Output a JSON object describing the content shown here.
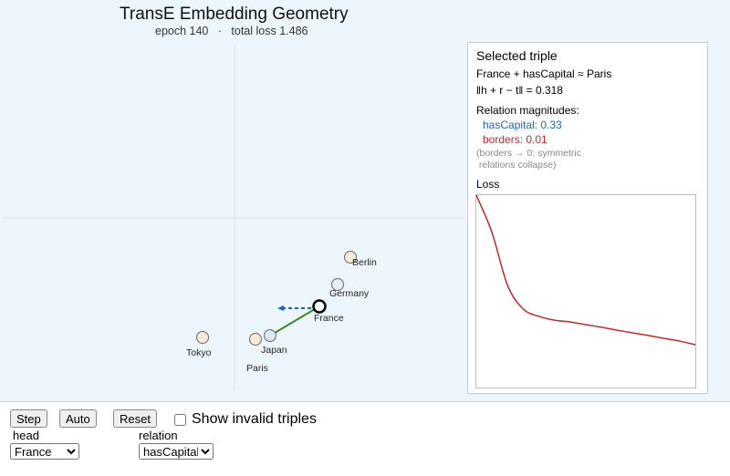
{
  "title": "TransE Embedding Geometry",
  "subtitle": {
    "epoch": "epoch 140",
    "separator": "·",
    "loss": "total loss 1.486"
  },
  "entities": [
    "Berlin",
    "Germany",
    "France",
    "Japan",
    "Paris",
    "Tokyo"
  ],
  "panel": {
    "heading": "Selected triple",
    "triple": "France + hasCapital ≈ Paris",
    "distance": "‖h + r − t‖ = 0.318",
    "magnitudes_heading": "Relation magnitudes:",
    "magnitudes": [
      "hasCapital: 0.33",
      "borders: 0.01"
    ],
    "note": [
      "(borders → 0: symmetric",
      " relations collapse)"
    ],
    "loss_label": "Loss",
    "loss_values": [
      6.57,
      5.3,
      3.5,
      2.7,
      2.45,
      2.32,
      2.26,
      2.17,
      2.08,
      1.98,
      1.89,
      1.8,
      1.7,
      1.61,
      1.486
    ]
  },
  "controls": {
    "buttons": [
      "Step",
      "Auto",
      "Reset"
    ],
    "checkbox": "Show invalid triples",
    "head_label": "head",
    "head_value": "France",
    "relation_label": "relation",
    "relation_value": "hasCapital"
  }
}
